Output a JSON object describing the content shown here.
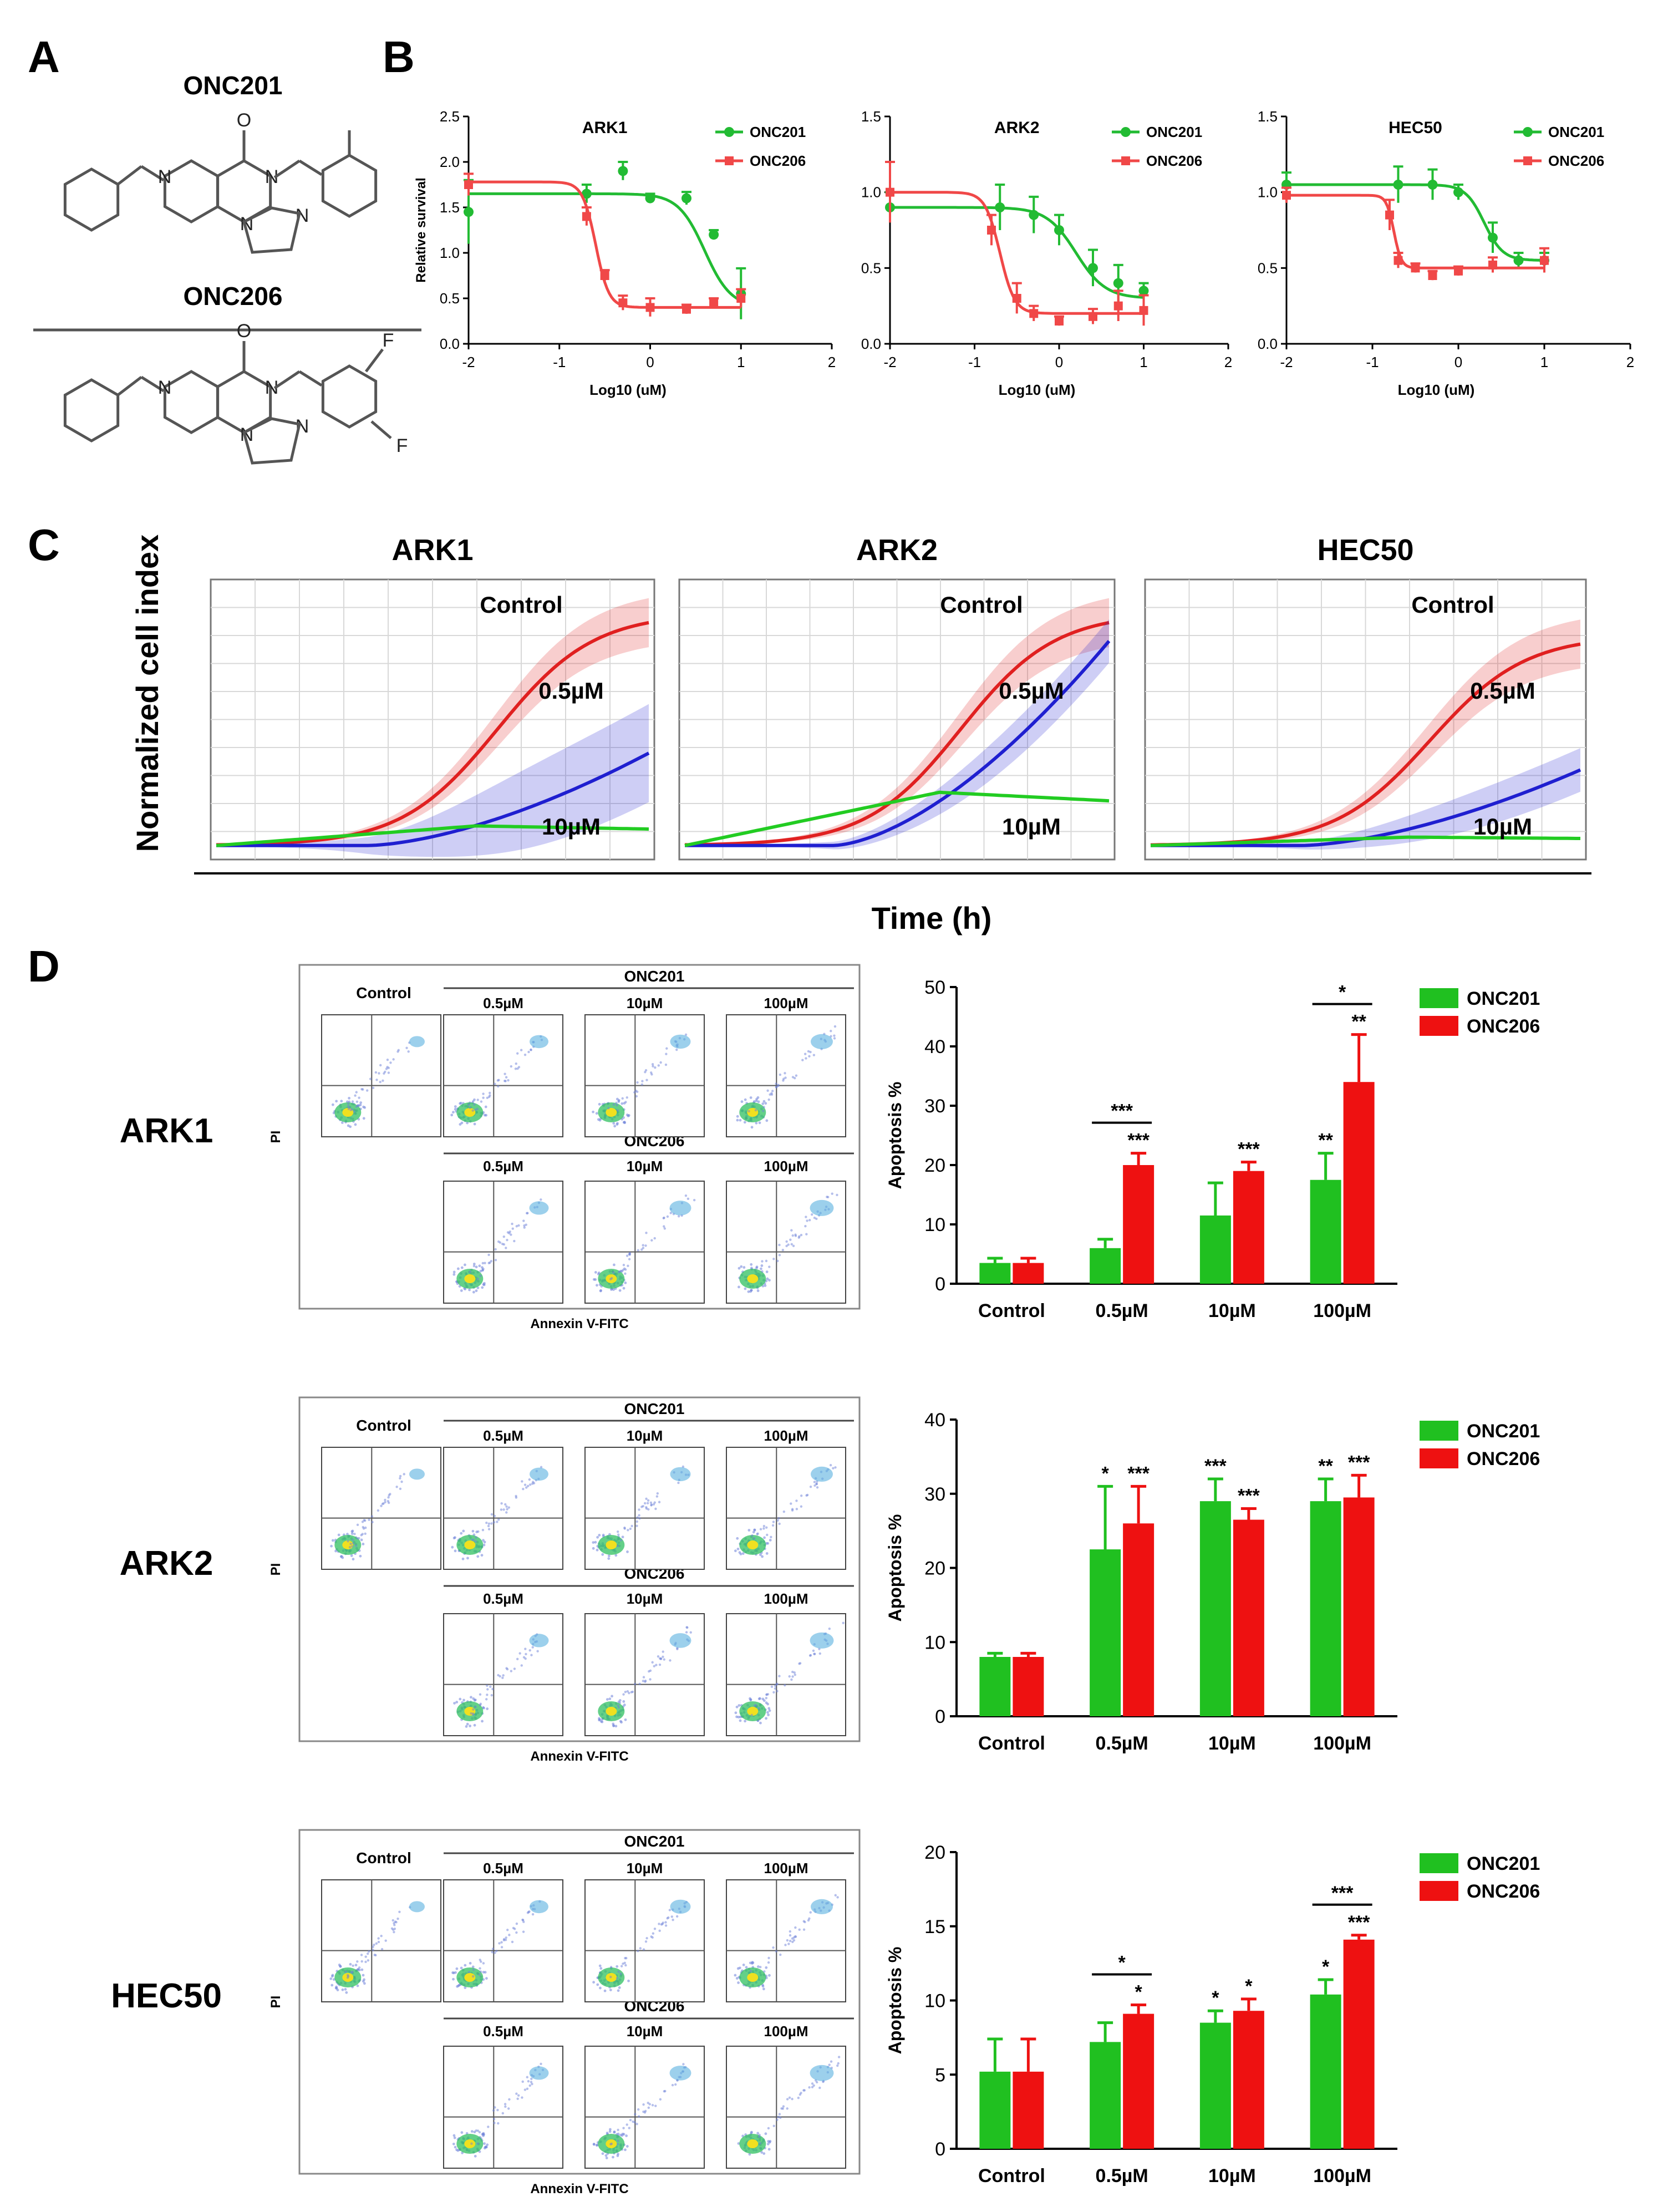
{
  "panel_labels": [
    "A",
    "B",
    "C",
    "D"
  ],
  "panel_a": {
    "compounds": [
      {
        "name": "ONC201",
        "substituents": []
      },
      {
        "name": "ONC206",
        "substituents": [
          "F",
          "F"
        ]
      }
    ],
    "carbonyl_atom": "O",
    "ring_atoms": [
      "N",
      "N",
      "N",
      "N"
    ]
  },
  "panel_c": {
    "ylabel": "Normalized cell index",
    "xlabel": "Time (h)",
    "colors": {
      "control": "#e02020",
      "low": "#1f1fd0",
      "high": "#22cc22"
    },
    "subplots": [
      {
        "title": "ARK1",
        "labels": {
          "control": "Control",
          "low": "0.5µM",
          "high": "10µM"
        },
        "control_end": 0.88,
        "low_end": 0.38,
        "high_end": 0.12
      },
      {
        "title": "ARK2",
        "labels": {
          "control": "Control",
          "low": "0.5µM",
          "high": "10µM"
        },
        "control_end": 0.88,
        "low_end": 0.78,
        "high_end": 0.24
      },
      {
        "title": "HEC50",
        "labels": {
          "control": "Control",
          "low": "0.5µM",
          "high": "10µM"
        },
        "control_end": 0.8,
        "low_end": 0.32,
        "high_end": 0.08
      }
    ]
  },
  "panel_d": {
    "cell_lines": [
      {
        "name": "ARK1",
        "control_label": "Control",
        "onc201_label": "ONC201",
        "onc206_label": "ONC206",
        "concentrations": [
          "0.5µM",
          "10µM",
          "100µM"
        ],
        "y_axis_label": "PI",
        "x_axis_label": "Annexin V-FITC"
      },
      {
        "name": "ARK2",
        "control_label": "Control",
        "onc201_label": "ONC201",
        "onc206_label": "ONC206",
        "concentrations": [
          "0.5µM",
          "10µM",
          "100µM"
        ],
        "y_axis_label": "PI",
        "x_axis_label": "Annexin V-FITC"
      },
      {
        "name": "HEC50",
        "control_label": "Control",
        "onc201_label": "ONC201",
        "onc206_label": "ONC206",
        "concentrations": [
          "0.5µM",
          "10µM",
          "100µM"
        ],
        "y_axis_label": "PI",
        "x_axis_label": "Annexin V-FITC"
      }
    ]
  },
  "chart_data": [
    {
      "type": "line",
      "panel": "B",
      "title": "ARK1",
      "xlabel": "Log10 (uM)",
      "ylabel": "Relative survival",
      "xlim": [
        -2,
        2
      ],
      "ylim": [
        0,
        2.5
      ],
      "xticks": [
        -2,
        -1,
        0,
        1,
        2
      ],
      "yticks": [
        0.0,
        0.5,
        1.0,
        1.5,
        2.0,
        2.5
      ],
      "series": [
        {
          "name": "ONC201",
          "color": "#22bb33",
          "x": [
            -2,
            -0.7,
            -0.3,
            0,
            0.4,
            0.7,
            1
          ],
          "y": [
            1.45,
            1.65,
            1.9,
            1.6,
            1.6,
            1.2,
            0.55
          ],
          "err": [
            0.35,
            0.1,
            0.1,
            0.05,
            0.07,
            0.05,
            0.28
          ],
          "fit": {
            "top": 1.65,
            "bottom": 0.4,
            "ec50": 0.6,
            "slope": 3
          }
        },
        {
          "name": "ONC206",
          "color": "#f04848",
          "x": [
            -2,
            -0.7,
            -0.5,
            -0.3,
            0,
            0.4,
            0.7,
            1
          ],
          "y": [
            1.75,
            1.4,
            0.75,
            0.45,
            0.4,
            0.38,
            0.45,
            0.5
          ],
          "err": [
            0.12,
            0.1,
            0.06,
            0.08,
            0.1,
            0.05,
            0.05,
            0.1
          ],
          "fit": {
            "top": 1.78,
            "bottom": 0.4,
            "ec50": -0.6,
            "slope": 6
          }
        }
      ]
    },
    {
      "type": "line",
      "panel": "B",
      "title": "ARK2",
      "xlabel": "Log10 (uM)",
      "ylabel": "",
      "xlim": [
        -2,
        2
      ],
      "ylim": [
        0,
        1.5
      ],
      "xticks": [
        -2,
        -1,
        0,
        1,
        2
      ],
      "yticks": [
        0.0,
        0.5,
        1.0,
        1.5
      ],
      "series": [
        {
          "name": "ONC201",
          "color": "#22bb33",
          "x": [
            -2,
            -0.7,
            -0.3,
            0,
            0.4,
            0.7,
            1
          ],
          "y": [
            0.9,
            0.9,
            0.85,
            0.75,
            0.5,
            0.4,
            0.35
          ],
          "err": [
            0.1,
            0.15,
            0.12,
            0.1,
            0.12,
            0.12,
            0.05
          ],
          "fit": {
            "top": 0.9,
            "bottom": 0.3,
            "ec50": 0.2,
            "slope": 2.5
          }
        },
        {
          "name": "ONC206",
          "color": "#f04848",
          "x": [
            -2,
            -0.8,
            -0.5,
            -0.3,
            0,
            0.4,
            0.7,
            1
          ],
          "y": [
            1.0,
            0.75,
            0.3,
            0.2,
            0.15,
            0.18,
            0.25,
            0.22
          ],
          "err": [
            0.2,
            0.1,
            0.1,
            0.05,
            0.03,
            0.05,
            0.1,
            0.1
          ],
          "fit": {
            "top": 1.0,
            "bottom": 0.2,
            "ec50": -0.7,
            "slope": 5
          }
        }
      ]
    },
    {
      "type": "line",
      "panel": "B",
      "title": "HEC50",
      "xlabel": "Log10 (uM)",
      "ylabel": "",
      "xlim": [
        -2,
        2
      ],
      "ylim": [
        0,
        1.5
      ],
      "xticks": [
        -2,
        -1,
        0,
        1,
        2
      ],
      "yticks": [
        0.0,
        0.5,
        1.0,
        1.5
      ],
      "series": [
        {
          "name": "ONC201",
          "color": "#22bb33",
          "x": [
            -2,
            -0.7,
            -0.3,
            0,
            0.4,
            0.7,
            1
          ],
          "y": [
            1.05,
            1.05,
            1.05,
            1.0,
            0.7,
            0.55,
            0.55
          ],
          "err": [
            0.08,
            0.12,
            0.1,
            0.05,
            0.1,
            0.05,
            0.05
          ],
          "fit": {
            "top": 1.05,
            "bottom": 0.55,
            "ec50": 0.3,
            "slope": 4
          }
        },
        {
          "name": "ONC206",
          "color": "#f04848",
          "x": [
            -2,
            -0.8,
            -0.7,
            -0.5,
            -0.3,
            0,
            0.4,
            1
          ],
          "y": [
            0.98,
            0.85,
            0.55,
            0.5,
            0.45,
            0.48,
            0.52,
            0.55
          ],
          "err": [
            0.05,
            0.1,
            0.05,
            0.03,
            0.03,
            0.03,
            0.05,
            0.08
          ],
          "fit": {
            "top": 0.98,
            "bottom": 0.5,
            "ec50": -0.75,
            "slope": 10
          }
        }
      ]
    },
    {
      "type": "bar",
      "panel": "D",
      "cell_line": "ARK1",
      "ylabel": "Apoptosis %",
      "ylim": [
        0,
        50
      ],
      "yticks": [
        0,
        10,
        20,
        30,
        40,
        50
      ],
      "categories": [
        "Control",
        "0.5µM",
        "10µM",
        "100µM"
      ],
      "series": [
        {
          "name": "ONC201",
          "color": "#20c020",
          "values": [
            3.5,
            6,
            11.5,
            17.5
          ],
          "err": [
            0.8,
            1.5,
            5.5,
            4.5
          ],
          "stars": [
            "",
            "",
            "",
            "**"
          ]
        },
        {
          "name": "ONC206",
          "color": "#ee1111",
          "values": [
            3.5,
            20,
            19,
            34
          ],
          "err": [
            0.8,
            2,
            1.5,
            8
          ],
          "stars": [
            "",
            "***",
            "***",
            "**"
          ]
        }
      ],
      "comparisons": [
        {
          "category": 1,
          "label": "***"
        },
        {
          "category": 3,
          "label": "*"
        }
      ]
    },
    {
      "type": "bar",
      "panel": "D",
      "cell_line": "ARK2",
      "ylabel": "Apoptosis %",
      "ylim": [
        0,
        40
      ],
      "yticks": [
        0,
        10,
        20,
        30,
        40
      ],
      "categories": [
        "Control",
        "0.5µM",
        "10µM",
        "100µM"
      ],
      "series": [
        {
          "name": "ONC201",
          "color": "#20c020",
          "values": [
            8,
            22.5,
            29,
            29
          ],
          "err": [
            0.5,
            8.5,
            3,
            3
          ],
          "stars": [
            "",
            "*",
            "***",
            "**"
          ]
        },
        {
          "name": "ONC206",
          "color": "#ee1111",
          "values": [
            8,
            26,
            26.5,
            29.5
          ],
          "err": [
            0.5,
            5,
            1.5,
            3
          ],
          "stars": [
            "",
            "***",
            "***",
            "***"
          ]
        }
      ],
      "comparisons": []
    },
    {
      "type": "bar",
      "panel": "D",
      "cell_line": "HEC50",
      "ylabel": "Apoptosis %",
      "ylim": [
        0,
        20
      ],
      "yticks": [
        0,
        5,
        10,
        15,
        20
      ],
      "categories": [
        "Control",
        "0.5µM",
        "10µM",
        "100µM"
      ],
      "series": [
        {
          "name": "ONC201",
          "color": "#20c020",
          "values": [
            5.2,
            7.2,
            8.5,
            10.4
          ],
          "err": [
            2.2,
            1.3,
            0.8,
            1.0
          ],
          "stars": [
            "",
            "",
            "*",
            "*"
          ]
        },
        {
          "name": "ONC206",
          "color": "#ee1111",
          "values": [
            5.2,
            9.1,
            9.3,
            14.1
          ],
          "err": [
            2.2,
            0.6,
            0.8,
            0.3
          ],
          "stars": [
            "",
            "*",
            "*",
            "***"
          ]
        }
      ],
      "comparisons": [
        {
          "category": 1,
          "label": "*"
        },
        {
          "category": 3,
          "label": "***"
        }
      ]
    }
  ]
}
